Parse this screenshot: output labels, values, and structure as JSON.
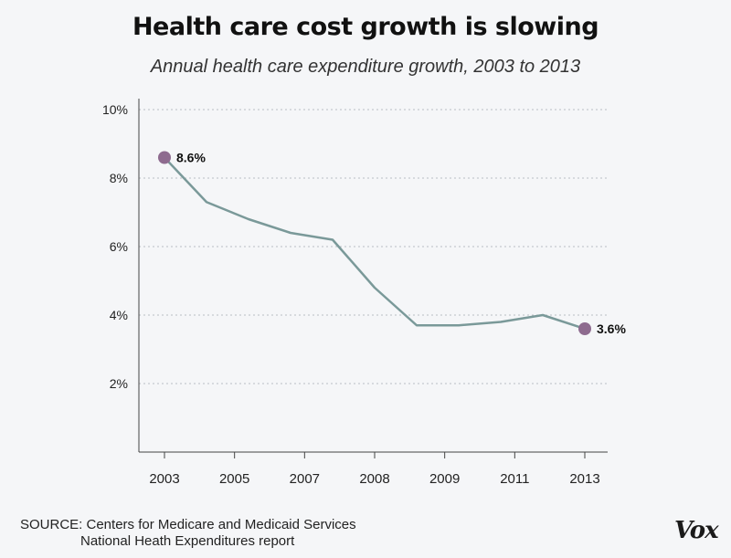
{
  "chart_data": {
    "type": "line",
    "title": "Health care cost growth is slowing",
    "subtitle": "Annual health care expenditure growth, 2003 to 2013",
    "x_tick_labels": [
      "2003",
      "2005",
      "2007",
      "2008",
      "2009",
      "2011",
      "2013"
    ],
    "y_ticks": [
      "10%",
      "8%",
      "6%",
      "4%",
      "2%"
    ],
    "ylim": [
      0,
      10
    ],
    "grid": true,
    "series": [
      {
        "x": [
          2003,
          2004,
          2005,
          2006,
          2007,
          2008,
          2009,
          2010,
          2011,
          2012,
          2013
        ],
        "values": [
          8.6,
          7.3,
          6.8,
          6.4,
          6.2,
          4.8,
          3.7,
          3.7,
          3.8,
          4.0,
          3.6
        ],
        "color": "#7a9999"
      }
    ],
    "annotations": [
      {
        "x": 2003,
        "value": 8.6,
        "label": "8.6%"
      },
      {
        "x": 2013,
        "value": 3.6,
        "label": "3.6%"
      }
    ],
    "marker_color": "#8e6b8f"
  },
  "source": {
    "line1": "SOURCE: Centers for Medicare and Medicaid Services",
    "line2": "National Heath Expenditures report"
  },
  "logo_text": "Vox"
}
